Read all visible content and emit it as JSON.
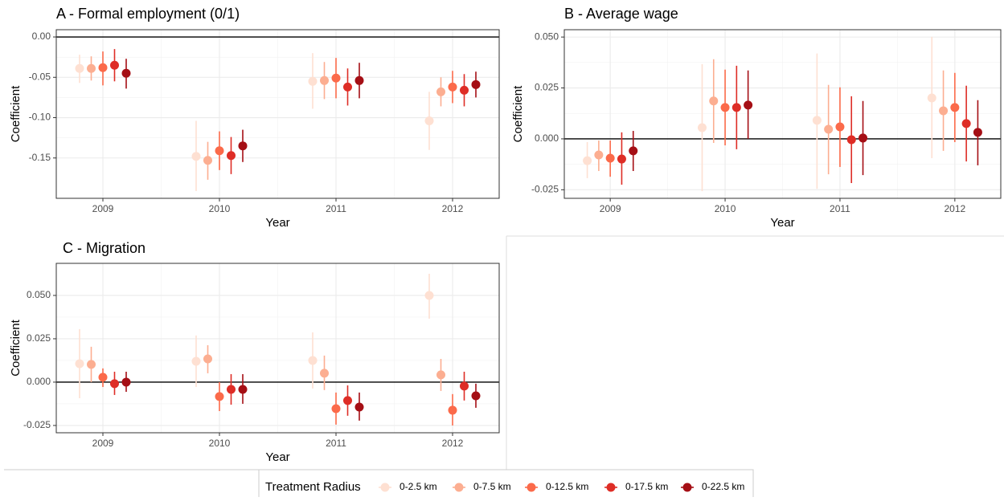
{
  "chart_data": [
    {
      "type": "pointrange",
      "title": "A - Formal employment (0/1)",
      "x_label": "Year",
      "y_label": "Coefficient",
      "categories": [
        "2009",
        "2010",
        "2011",
        "2012"
      ],
      "ylim": [
        -0.2,
        0.009
      ],
      "yticks": [
        {
          "value": 0,
          "label": "0.00"
        },
        -0.05,
        {
          "value": -0.1,
          "label": "-0.10"
        },
        -0.15
      ],
      "reference_line": 0,
      "grid": true,
      "series": [
        {
          "name": "0-2.5 km",
          "color": "#fee0d2",
          "values": [
            -0.039,
            -0.148,
            -0.055,
            -0.104
          ],
          "lower": [
            -0.057,
            -0.191,
            -0.089,
            -0.14
          ],
          "upper": [
            -0.022,
            -0.104,
            -0.02,
            -0.068
          ]
        },
        {
          "name": "0-7.5 km",
          "color": "#fcae91",
          "values": [
            -0.039,
            -0.153,
            -0.054,
            -0.068
          ],
          "lower": [
            -0.054,
            -0.177,
            -0.077,
            -0.086
          ],
          "upper": [
            -0.024,
            -0.13,
            -0.031,
            -0.05
          ]
        },
        {
          "name": "0-12.5 km",
          "color": "#fb6a4a",
          "values": [
            -0.038,
            -0.141,
            -0.051,
            -0.062
          ],
          "lower": [
            -0.06,
            -0.165,
            -0.076,
            -0.082
          ],
          "upper": [
            -0.018,
            -0.117,
            -0.026,
            -0.042
          ]
        },
        {
          "name": "0-17.5 km",
          "color": "#de2d26",
          "values": [
            -0.035,
            -0.147,
            -0.062,
            -0.066
          ],
          "lower": [
            -0.055,
            -0.17,
            -0.085,
            -0.086
          ],
          "upper": [
            -0.015,
            -0.124,
            -0.039,
            -0.046
          ]
        },
        {
          "name": "0-22.5 km",
          "color": "#a50f15",
          "values": [
            -0.045,
            -0.135,
            -0.054,
            -0.059
          ],
          "lower": [
            -0.064,
            -0.155,
            -0.076,
            -0.075
          ],
          "upper": [
            -0.027,
            -0.115,
            -0.032,
            -0.043
          ]
        }
      ]
    },
    {
      "type": "pointrange",
      "title": "B - Average wage",
      "x_label": "Year",
      "y_label": "Coefficient",
      "categories": [
        "2009",
        "2010",
        "2011",
        "2012"
      ],
      "ylim": [
        -0.0292,
        0.0536
      ],
      "yticks": [
        {
          "value": 0.05,
          "label": "0.050"
        },
        0.025,
        {
          "value": 0,
          "label": "0.000"
        },
        -0.025
      ],
      "reference_line": 0,
      "grid": true,
      "series": [
        {
          "name": "0-2.5 km",
          "color": "#fee0d2",
          "values": [
            -0.0107,
            0.0055,
            0.0091,
            0.0201
          ],
          "lower": [
            -0.0193,
            -0.0257,
            -0.0245,
            -0.0095
          ],
          "upper": [
            -0.0016,
            0.0367,
            0.0419,
            0.0501
          ]
        },
        {
          "name": "0-7.5 km",
          "color": "#fcae91",
          "values": [
            -0.0079,
            0.0186,
            0.0047,
            0.0138
          ],
          "lower": [
            -0.0158,
            -0.002,
            -0.0174,
            -0.0059
          ],
          "upper": [
            -0.0008,
            0.0391,
            0.0265,
            0.0336
          ]
        },
        {
          "name": "0-12.5 km",
          "color": "#fb6a4a",
          "values": [
            -0.0095,
            0.0154,
            0.0059,
            0.0154
          ],
          "lower": [
            -0.0186,
            -0.0032,
            -0.0138,
            -0.0016
          ],
          "upper": [
            -0.0008,
            0.034,
            0.0253,
            0.0324
          ]
        },
        {
          "name": "0-17.5 km",
          "color": "#de2d26",
          "values": [
            -0.0099,
            0.0154,
            -0.0004,
            0.0075
          ],
          "lower": [
            -0.0225,
            -0.0051,
            -0.0217,
            -0.0111
          ],
          "upper": [
            0.0032,
            0.0359,
            0.0209,
            0.0261
          ]
        },
        {
          "name": "0-22.5 km",
          "color": "#a50f15",
          "values": [
            -0.0059,
            0.0166,
            0.0004,
            0.0032
          ],
          "lower": [
            -0.0158,
            0.0,
            -0.0178,
            -0.013
          ],
          "upper": [
            0.0039,
            0.0336,
            0.0186,
            0.019
          ]
        }
      ]
    },
    {
      "type": "pointrange",
      "title": "C - Migration",
      "x_label": "Year",
      "y_label": "Coefficient",
      "categories": [
        "2009",
        "2010",
        "2011",
        "2012"
      ],
      "ylim": [
        -0.0292,
        0.0685
      ],
      "yticks": [
        {
          "value": 0.05,
          "label": "0.050"
        },
        0.025,
        {
          "value": 0,
          "label": "0.000"
        },
        -0.025
      ],
      "reference_line": 0,
      "grid": true,
      "series": [
        {
          "name": "0-2.5 km",
          "color": "#fee0d2",
          "values": [
            0.0106,
            0.012,
            0.0125,
            0.05
          ],
          "lower": [
            -0.0093,
            -0.0028,
            -0.0037,
            0.0366
          ],
          "upper": [
            0.0306,
            0.0269,
            0.0287,
            0.0625
          ]
        },
        {
          "name": "0-7.5 km",
          "color": "#fcae91",
          "values": [
            0.0102,
            0.0134,
            0.0051,
            0.0042
          ],
          "lower": [
            0.0,
            0.0051,
            -0.0046,
            -0.0051
          ],
          "upper": [
            0.0204,
            0.0213,
            0.0153,
            0.0134
          ]
        },
        {
          "name": "0-12.5 km",
          "color": "#fb6a4a",
          "values": [
            0.0028,
            -0.0083,
            -0.0153,
            -0.0162
          ],
          "lower": [
            -0.0028,
            -0.0167,
            -0.0245,
            -0.025
          ],
          "upper": [
            0.0079,
            0.0,
            -0.006,
            -0.0069
          ]
        },
        {
          "name": "0-17.5 km",
          "color": "#de2d26",
          "values": [
            -0.0009,
            -0.0042,
            -0.0106,
            -0.0023
          ],
          "lower": [
            -0.0074,
            -0.013,
            -0.0194,
            -0.0106
          ],
          "upper": [
            0.006,
            0.0046,
            -0.0019,
            0.006
          ]
        },
        {
          "name": "0-22.5 km",
          "color": "#a50f15",
          "values": [
            0.0,
            -0.0042,
            -0.0144,
            -0.0079
          ],
          "lower": [
            -0.0056,
            -0.0125,
            -0.0222,
            -0.0148
          ],
          "upper": [
            0.006,
            0.0046,
            -0.006,
            -0.0009
          ]
        }
      ]
    }
  ],
  "legend": {
    "title": "Treatment Radius",
    "position": "bottom"
  }
}
